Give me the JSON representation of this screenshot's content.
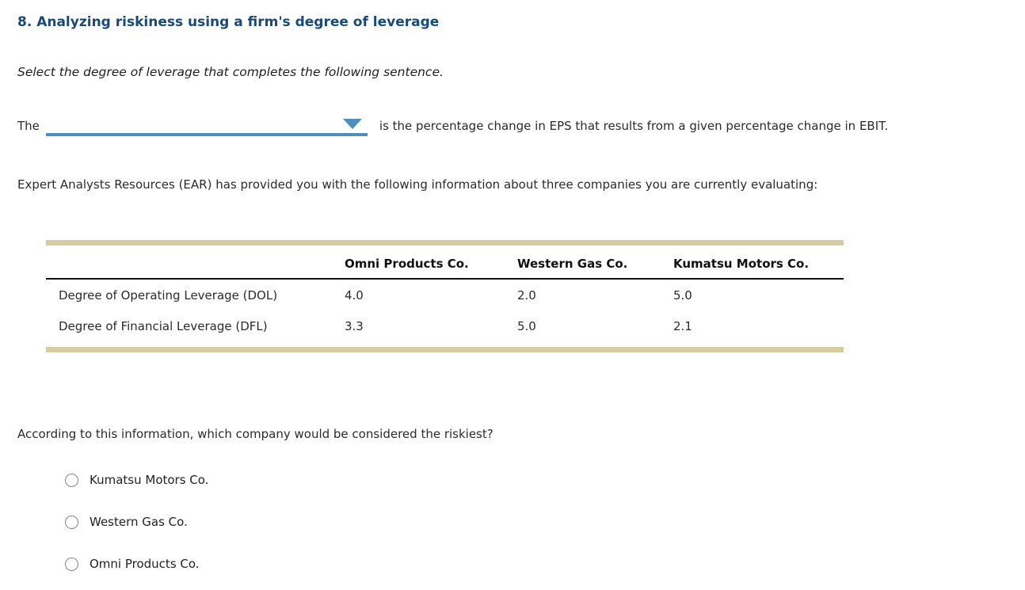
{
  "page": {
    "title": "8. Analyzing riskiness using a firm's degree of leverage",
    "instruction": "Select the degree of leverage that completes the following sentence.",
    "sentence": {
      "prefix": "The",
      "dropdown_value": "",
      "suffix": "is the percentage change in EPS that results from a given percentage change in EBIT."
    },
    "intro": "Expert Analysts Resources (EAR) has provided you with the following information about three companies you are currently evaluating:",
    "question": "According to this information, which company would be considered the riskiest?"
  },
  "table": {
    "columns": [
      "",
      "Omni Products Co.",
      "Western Gas Co.",
      "Kumatsu Motors Co."
    ],
    "rows": [
      {
        "label": "Degree of Operating Leverage (DOL)",
        "values": [
          "4.0",
          "2.0",
          "5.0"
        ]
      },
      {
        "label": "Degree of Financial Leverage (DFL)",
        "values": [
          "3.3",
          "5.0",
          "2.1"
        ]
      }
    ]
  },
  "options": [
    {
      "label": "Kumatsu Motors Co."
    },
    {
      "label": "Western Gas Co."
    },
    {
      "label": "Omni Products Co."
    }
  ],
  "colors": {
    "title_navy": "#17497b",
    "accent_blue": "#4e8fc0",
    "table_bar_tan": "#d6cda2",
    "body_text": "#2b2b2b"
  }
}
